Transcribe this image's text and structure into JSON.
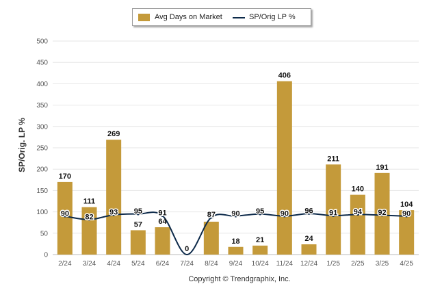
{
  "legend": {
    "bar_label": "Avg Days on Market",
    "line_label": "SP/Orig LP %"
  },
  "colors": {
    "bar": "#C49A3A",
    "line": "#0D2A4A",
    "grid": "#e6e6e6"
  },
  "footer": "Copyright © Trendgraphix, Inc.",
  "chart_data": {
    "type": "bar",
    "categories": [
      "2/24",
      "3/24",
      "4/24",
      "5/24",
      "6/24",
      "7/24",
      "8/24",
      "9/24",
      "10/24",
      "11/24",
      "12/24",
      "1/25",
      "2/25",
      "3/25",
      "4/25"
    ],
    "ylabel": "SP/Orig. LP %",
    "ylim": [
      0,
      500
    ],
    "yticks": [
      0,
      50,
      100,
      150,
      200,
      250,
      300,
      350,
      400,
      450,
      500
    ],
    "grid": true,
    "legend_position": "top-center",
    "series": [
      {
        "name": "Avg Days on Market",
        "type": "bar",
        "values": [
          170,
          111,
          269,
          57,
          64,
          0,
          77,
          18,
          21,
          406,
          24,
          211,
          140,
          191,
          104
        ]
      },
      {
        "name": "SP/Orig LP %",
        "type": "line",
        "values": [
          90,
          82,
          93,
          95,
          91,
          null,
          87,
          90,
          95,
          90,
          96,
          91,
          94,
          92,
          90
        ]
      }
    ]
  }
}
